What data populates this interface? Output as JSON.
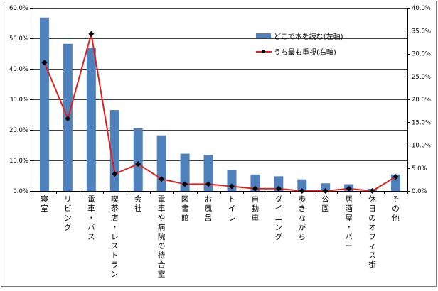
{
  "chart_data": {
    "type": "bar",
    "categories": [
      "寝室",
      "リビング",
      "電車・バス",
      "喫茶店・レストラン",
      "会社",
      "電車や病院の待合室",
      "図書館",
      "お風呂",
      "トイレ",
      "自動車",
      "ダイニング",
      "歩きながら",
      "公園",
      "居酒屋・バー",
      "休日のオフィス街",
      "その他"
    ],
    "series": [
      {
        "name": "どこで本を読む(左軸)",
        "type": "bar",
        "axis": "left",
        "color": "#4F81BD",
        "values": [
          56.8,
          48.2,
          47.0,
          26.5,
          20.5,
          18.2,
          12.2,
          11.8,
          6.8,
          5.4,
          4.8,
          3.8,
          2.5,
          2.2,
          0.7,
          5.4
        ]
      },
      {
        "name": "うち最も重視(右軸)",
        "type": "line",
        "axis": "right",
        "color": "#E02020",
        "values": [
          28.0,
          15.8,
          34.3,
          3.7,
          5.9,
          2.6,
          1.5,
          1.5,
          1.0,
          0.5,
          0.5,
          0.0,
          0.0,
          0.5,
          0.0,
          3.1
        ]
      }
    ],
    "y_left": {
      "ylim": [
        0,
        60
      ],
      "ticks": [
        "0.0%",
        "10.0%",
        "20.0%",
        "30.0%",
        "40.0%",
        "50.0%",
        "60.0%"
      ]
    },
    "y_right": {
      "ylim": [
        0,
        40
      ],
      "ticks": [
        "0.0%",
        "5.0%",
        "10.0%",
        "15.0%",
        "20.0%",
        "25.0%",
        "30.0%",
        "35.0%",
        "40.0%"
      ]
    },
    "grid": true,
    "legend_position": "top-right"
  }
}
